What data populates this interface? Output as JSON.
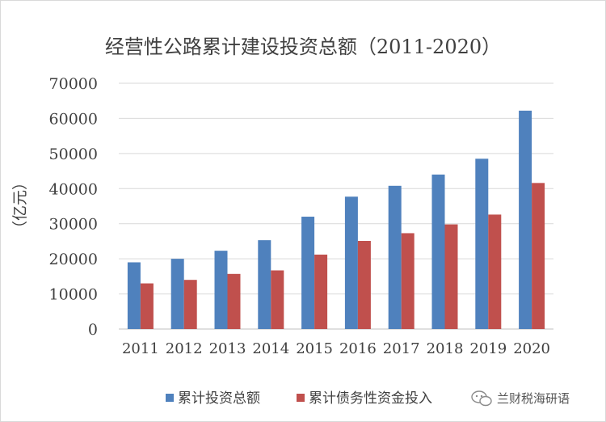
{
  "chart_data": {
    "type": "bar",
    "title": "经营性公路累计建设投资总额（2011-2020）",
    "ylabel": "（亿元）",
    "xlabel": "",
    "ylim": [
      0,
      70000
    ],
    "yticks": [
      "0",
      "10000",
      "20000",
      "30000",
      "40000",
      "50000",
      "60000",
      "70000"
    ],
    "grid": true,
    "legend_position": "bottom",
    "categories": [
      "2011",
      "2012",
      "2013",
      "2014",
      "2015",
      "2016",
      "2017",
      "2018",
      "2019",
      "2020"
    ],
    "series": [
      {
        "name": "累计投资总额",
        "color": "#4f81bd",
        "values": [
          19000,
          20000,
          22300,
          25300,
          32000,
          37700,
          40800,
          44000,
          48500,
          62200
        ]
      },
      {
        "name": "累计债务性资金投入",
        "color": "#c0504d",
        "values": [
          13000,
          14000,
          15700,
          16700,
          21200,
          25100,
          27300,
          29800,
          32600,
          41600
        ]
      }
    ]
  },
  "watermark": {
    "icon": "wechat-icon",
    "text": "兰财税海研语"
  }
}
